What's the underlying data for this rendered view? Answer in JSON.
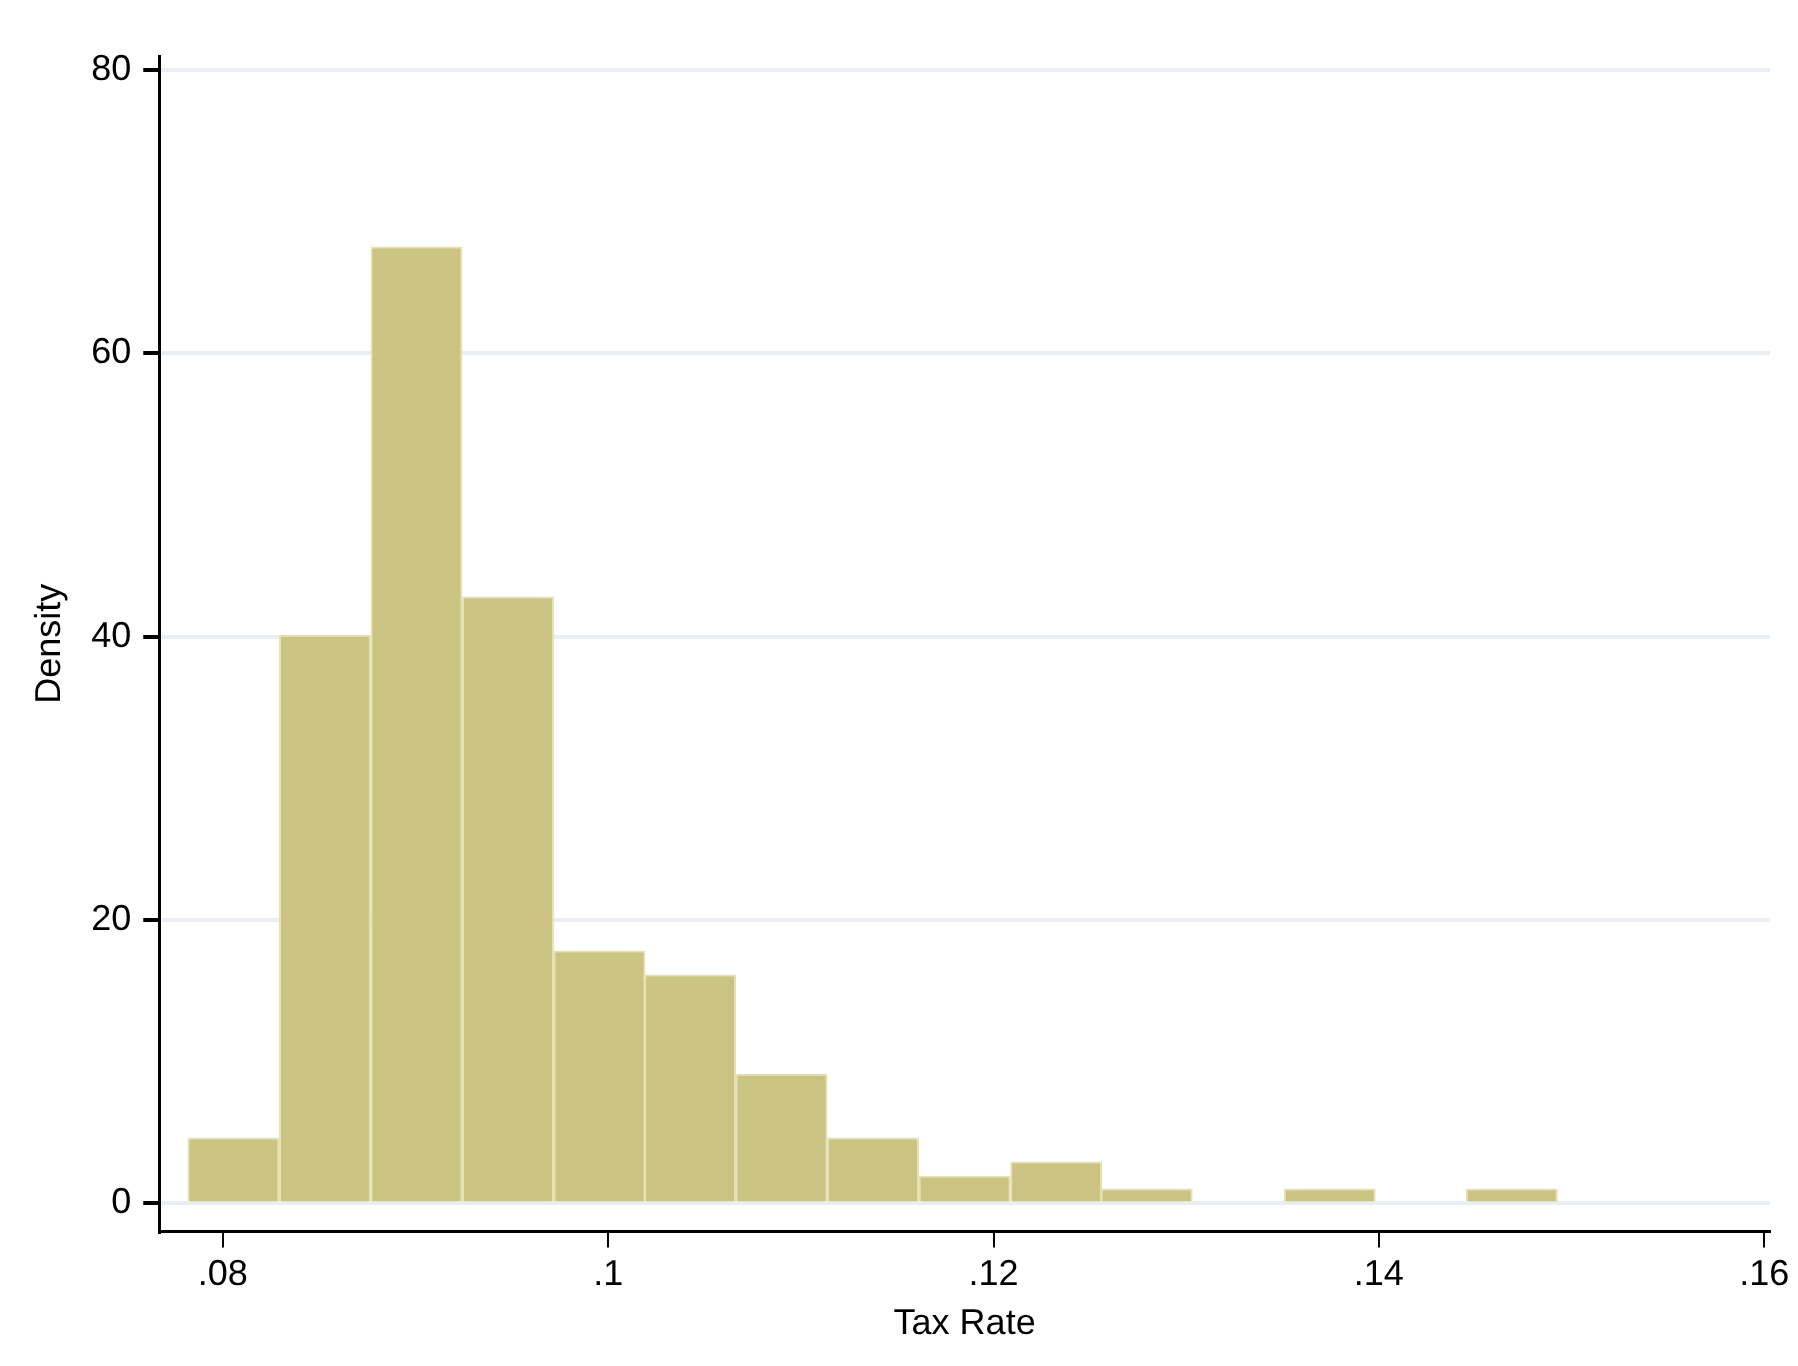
{
  "chart_data": {
    "type": "histogram",
    "xlabel": "Tax Rate",
    "ylabel": "Density",
    "color": "#cbc382",
    "bins": [
      0.0782,
      0.0829,
      0.0877,
      0.0924,
      0.0972,
      0.1019,
      0.1066,
      0.1114,
      0.1161,
      0.1209,
      0.1256,
      0.1303,
      0.1351,
      0.1398,
      0.1445,
      0.1493
    ],
    "values": [
      4.6,
      40.1,
      67.5,
      42.8,
      17.8,
      16.1,
      9.1,
      4.6,
      1.9,
      2.9,
      1,
      0,
      1,
      0,
      1
    ],
    "xlim": [
      0.0767,
      0.1603
    ],
    "xticks": [
      {
        "value": 0.08,
        "label": ".08"
      },
      {
        "value": 0.1,
        "label": ".1"
      },
      {
        "value": 0.12,
        "label": ".12"
      },
      {
        "value": 0.14,
        "label": ".14"
      },
      {
        "value": 0.16,
        "label": ".16"
      }
    ],
    "ylim": [
      -2,
      81
    ],
    "yticks": [
      0,
      20,
      40,
      60,
      80
    ],
    "grid": "y"
  }
}
